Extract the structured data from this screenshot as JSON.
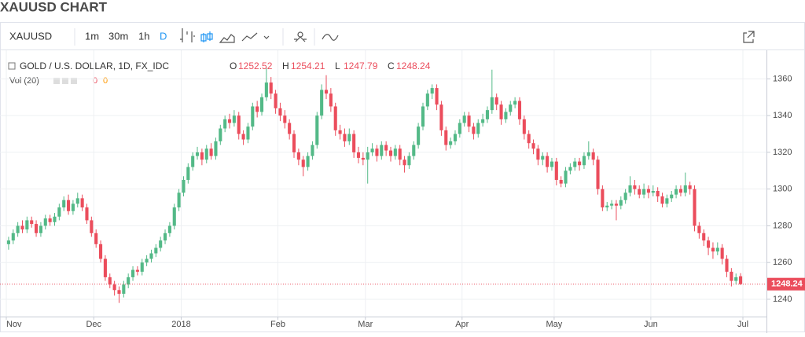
{
  "page_title": "XAUUSD CHART",
  "toolbar": {
    "symbol": "XAUUSD",
    "intervals": [
      "1m",
      "30m",
      "1h",
      "D"
    ]
  },
  "chart_data": {
    "type": "candlestick",
    "legend": "GOLD / U.S. DOLLAR, 1D, FX_IDC",
    "ohlc_labels": [
      "O",
      "H",
      "L",
      "C"
    ],
    "volume_label": "Vol (20)",
    "volume_values": [
      0,
      0
    ],
    "up_color": "#53b987",
    "down_color": "#eb4d5c",
    "ylim": [
      1231,
      1373
    ],
    "yticks": [
      1240,
      1260,
      1280,
      1300,
      1320,
      1340,
      1360
    ],
    "grid": true,
    "xticks": [
      {
        "value": 0,
        "label": "Nov"
      },
      {
        "value": 19,
        "label": "Dec"
      },
      {
        "value": 38,
        "label": "2018"
      },
      {
        "value": 59,
        "label": "Feb"
      },
      {
        "value": 78,
        "label": "Mar"
      },
      {
        "value": 99,
        "label": "Apr"
      },
      {
        "value": 119,
        "label": "May"
      },
      {
        "value": 140,
        "label": "Jun"
      },
      {
        "value": 160,
        "label": "Jul"
      }
    ],
    "candles": [
      [
        1270,
        1274,
        1267,
        1272
      ],
      [
        1272,
        1278,
        1270,
        1276
      ],
      [
        1276,
        1282,
        1274,
        1280
      ],
      [
        1280,
        1283,
        1276,
        1278
      ],
      [
        1278,
        1285,
        1276,
        1283
      ],
      [
        1283,
        1285,
        1279,
        1281
      ],
      [
        1281,
        1283,
        1274,
        1276
      ],
      [
        1276,
        1282,
        1274,
        1280
      ],
      [
        1280,
        1286,
        1278,
        1284
      ],
      [
        1284,
        1286,
        1280,
        1282
      ],
      [
        1282,
        1287,
        1280,
        1285
      ],
      [
        1285,
        1292,
        1283,
        1290
      ],
      [
        1290,
        1296,
        1288,
        1294
      ],
      [
        1294,
        1297,
        1286,
        1288
      ],
      [
        1288,
        1294,
        1286,
        1292
      ],
      [
        1292,
        1298,
        1290,
        1295
      ],
      [
        1295,
        1297,
        1288,
        1290
      ],
      [
        1290,
        1292,
        1281,
        1283
      ],
      [
        1283,
        1285,
        1274,
        1276
      ],
      [
        1276,
        1278,
        1268,
        1270
      ],
      [
        1270,
        1272,
        1260,
        1262
      ],
      [
        1262,
        1264,
        1250,
        1252
      ],
      [
        1252,
        1254,
        1246,
        1248
      ],
      [
        1248,
        1250,
        1242,
        1245
      ],
      [
        1245,
        1247,
        1238,
        1243
      ],
      [
        1243,
        1250,
        1241,
        1248
      ],
      [
        1248,
        1254,
        1246,
        1252
      ],
      [
        1252,
        1258,
        1250,
        1256
      ],
      [
        1256,
        1258,
        1253,
        1255
      ],
      [
        1255,
        1262,
        1253,
        1260
      ],
      [
        1260,
        1264,
        1258,
        1262
      ],
      [
        1262,
        1267,
        1260,
        1265
      ],
      [
        1265,
        1270,
        1263,
        1268
      ],
      [
        1268,
        1274,
        1266,
        1272
      ],
      [
        1272,
        1278,
        1270,
        1276
      ],
      [
        1276,
        1282,
        1274,
        1280
      ],
      [
        1280,
        1292,
        1278,
        1290
      ],
      [
        1290,
        1300,
        1288,
        1298
      ],
      [
        1298,
        1307,
        1296,
        1305
      ],
      [
        1305,
        1314,
        1303,
        1312
      ],
      [
        1312,
        1320,
        1310,
        1318
      ],
      [
        1318,
        1323,
        1316,
        1320
      ],
      [
        1320,
        1322,
        1313,
        1316
      ],
      [
        1316,
        1324,
        1314,
        1322
      ],
      [
        1322,
        1325,
        1316,
        1318
      ],
      [
        1318,
        1328,
        1316,
        1326
      ],
      [
        1326,
        1335,
        1324,
        1333
      ],
      [
        1333,
        1340,
        1331,
        1338
      ],
      [
        1338,
        1341,
        1333,
        1336
      ],
      [
        1336,
        1343,
        1334,
        1340
      ],
      [
        1340,
        1342,
        1327,
        1330
      ],
      [
        1330,
        1332,
        1324,
        1327
      ],
      [
        1327,
        1336,
        1325,
        1334
      ],
      [
        1334,
        1347,
        1332,
        1345
      ],
      [
        1345,
        1348,
        1339,
        1342
      ],
      [
        1342,
        1352,
        1340,
        1350
      ],
      [
        1350,
        1366,
        1348,
        1358
      ],
      [
        1358,
        1361,
        1349,
        1352
      ],
      [
        1352,
        1354,
        1341,
        1344
      ],
      [
        1344,
        1347,
        1337,
        1340
      ],
      [
        1340,
        1343,
        1333,
        1336
      ],
      [
        1336,
        1338,
        1327,
        1330
      ],
      [
        1330,
        1332,
        1317,
        1320
      ],
      [
        1320,
        1322,
        1313,
        1316
      ],
      [
        1316,
        1318,
        1307,
        1312
      ],
      [
        1312,
        1320,
        1310,
        1318
      ],
      [
        1318,
        1326,
        1316,
        1324
      ],
      [
        1324,
        1342,
        1322,
        1340
      ],
      [
        1340,
        1357,
        1338,
        1354
      ],
      [
        1354,
        1362,
        1349,
        1352
      ],
      [
        1352,
        1355,
        1342,
        1345
      ],
      [
        1345,
        1347,
        1329,
        1332
      ],
      [
        1332,
        1335,
        1327,
        1330
      ],
      [
        1330,
        1333,
        1323,
        1326
      ],
      [
        1326,
        1333,
        1324,
        1330
      ],
      [
        1330,
        1332,
        1317,
        1320
      ],
      [
        1320,
        1323,
        1314,
        1317
      ],
      [
        1317,
        1320,
        1313,
        1316
      ],
      [
        1316,
        1323,
        1303,
        1320
      ],
      [
        1320,
        1325,
        1318,
        1322
      ],
      [
        1322,
        1324,
        1315,
        1318
      ],
      [
        1318,
        1326,
        1316,
        1324
      ],
      [
        1324,
        1326,
        1318,
        1321
      ],
      [
        1321,
        1323,
        1315,
        1318
      ],
      [
        1318,
        1324,
        1316,
        1322
      ],
      [
        1322,
        1324,
        1313,
        1316
      ],
      [
        1316,
        1318,
        1309,
        1313
      ],
      [
        1313,
        1320,
        1311,
        1318
      ],
      [
        1318,
        1326,
        1316,
        1324
      ],
      [
        1324,
        1336,
        1322,
        1334
      ],
      [
        1334,
        1347,
        1332,
        1345
      ],
      [
        1345,
        1354,
        1343,
        1352
      ],
      [
        1352,
        1357,
        1349,
        1355
      ],
      [
        1355,
        1357,
        1343,
        1346
      ],
      [
        1346,
        1348,
        1329,
        1332
      ],
      [
        1332,
        1334,
        1321,
        1324
      ],
      [
        1324,
        1328,
        1322,
        1326
      ],
      [
        1326,
        1332,
        1324,
        1330
      ],
      [
        1330,
        1338,
        1328,
        1336
      ],
      [
        1336,
        1342,
        1334,
        1340
      ],
      [
        1340,
        1342,
        1331,
        1334
      ],
      [
        1334,
        1336,
        1327,
        1330
      ],
      [
        1330,
        1338,
        1328,
        1336
      ],
      [
        1336,
        1341,
        1334,
        1338
      ],
      [
        1338,
        1345,
        1336,
        1343
      ],
      [
        1343,
        1365,
        1341,
        1350
      ],
      [
        1350,
        1352,
        1343,
        1346
      ],
      [
        1346,
        1348,
        1335,
        1338
      ],
      [
        1338,
        1344,
        1336,
        1342
      ],
      [
        1342,
        1348,
        1340,
        1346
      ],
      [
        1346,
        1350,
        1344,
        1348
      ],
      [
        1348,
        1350,
        1335,
        1338
      ],
      [
        1338,
        1340,
        1327,
        1330
      ],
      [
        1330,
        1332,
        1322,
        1325
      ],
      [
        1325,
        1327,
        1319,
        1322
      ],
      [
        1322,
        1324,
        1313,
        1316
      ],
      [
        1316,
        1320,
        1313,
        1318
      ],
      [
        1318,
        1320,
        1309,
        1312
      ],
      [
        1312,
        1317,
        1310,
        1315
      ],
      [
        1315,
        1317,
        1302,
        1305
      ],
      [
        1305,
        1307,
        1301,
        1303
      ],
      [
        1303,
        1312,
        1301,
        1310
      ],
      [
        1310,
        1314,
        1308,
        1312
      ],
      [
        1312,
        1317,
        1310,
        1315
      ],
      [
        1315,
        1317,
        1310,
        1313
      ],
      [
        1313,
        1320,
        1311,
        1318
      ],
      [
        1318,
        1326,
        1316,
        1320
      ],
      [
        1320,
        1322,
        1313,
        1316
      ],
      [
        1316,
        1318,
        1297,
        1300
      ],
      [
        1300,
        1302,
        1288,
        1290
      ],
      [
        1290,
        1293,
        1288,
        1291
      ],
      [
        1291,
        1294,
        1289,
        1292
      ],
      [
        1292,
        1294,
        1283,
        1291
      ],
      [
        1291,
        1296,
        1289,
        1294
      ],
      [
        1294,
        1300,
        1292,
        1298
      ],
      [
        1298,
        1307,
        1296,
        1302
      ],
      [
        1302,
        1305,
        1297,
        1300
      ],
      [
        1300,
        1302,
        1295,
        1297
      ],
      [
        1297,
        1303,
        1295,
        1300
      ],
      [
        1300,
        1302,
        1295,
        1298
      ],
      [
        1298,
        1302,
        1296,
        1299
      ],
      [
        1299,
        1301,
        1293,
        1296
      ],
      [
        1296,
        1298,
        1290,
        1292
      ],
      [
        1292,
        1297,
        1290,
        1295
      ],
      [
        1295,
        1299,
        1293,
        1297
      ],
      [
        1297,
        1302,
        1295,
        1300
      ],
      [
        1300,
        1302,
        1296,
        1298
      ],
      [
        1298,
        1309,
        1296,
        1302
      ],
      [
        1302,
        1304,
        1297,
        1300
      ],
      [
        1300,
        1302,
        1277,
        1280
      ],
      [
        1280,
        1282,
        1273,
        1276
      ],
      [
        1276,
        1278,
        1269,
        1272
      ],
      [
        1272,
        1274,
        1264,
        1268
      ],
      [
        1268,
        1271,
        1262,
        1266
      ],
      [
        1266,
        1271,
        1264,
        1268
      ],
      [
        1268,
        1270,
        1259,
        1262
      ],
      [
        1262,
        1264,
        1252,
        1255
      ],
      [
        1255,
        1257,
        1247,
        1250
      ],
      [
        1250,
        1254,
        1248,
        1252
      ],
      [
        1252.52,
        1254.21,
        1247.79,
        1248.24
      ]
    ]
  }
}
